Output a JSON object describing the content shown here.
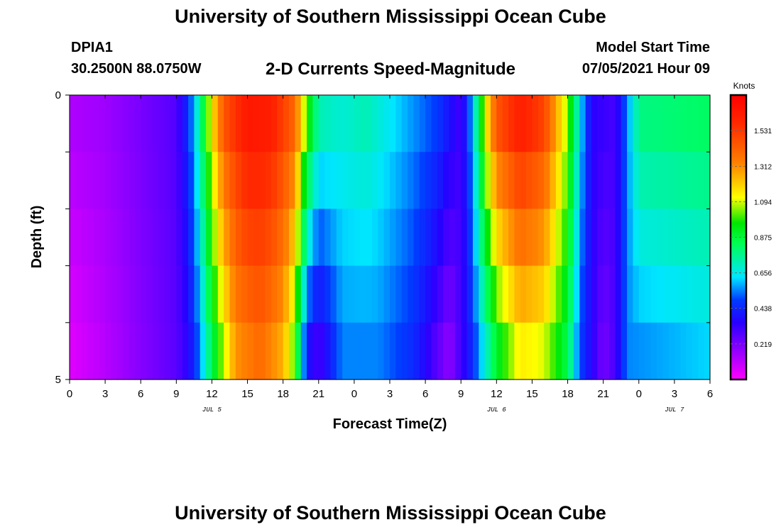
{
  "header": {
    "title": "University of Southern Mississippi Ocean Cube",
    "station": "DPIA1",
    "coordinates": "30.2500N  88.0750W",
    "subtitle": "2-D Currents Speed-Magnitude",
    "model_start_label": "Model Start Time",
    "model_start_value": "07/05/2021 Hour 09"
  },
  "footer": {
    "title": "University of Southern Mississippi Ocean Cube"
  },
  "chart_data": {
    "type": "heatmap",
    "title": "2-D Currents Speed-Magnitude",
    "xlabel": "Forecast Time(Z)",
    "ylabel": "Depth (ft)",
    "x_hours": [
      0,
      54
    ],
    "y_range": [
      0,
      5
    ],
    "x_tick_labels": [
      "0",
      "3",
      "6",
      "9",
      "12",
      "15",
      "18",
      "21",
      "0",
      "3",
      "6",
      "9",
      "12",
      "15",
      "18",
      "21",
      "0",
      "3",
      "6"
    ],
    "x_tick_hours": [
      0,
      3,
      6,
      9,
      12,
      15,
      18,
      21,
      24,
      27,
      30,
      33,
      36,
      39,
      42,
      45,
      48,
      51,
      54
    ],
    "date_labels": [
      {
        "label": "JUL 5",
        "hour": 12
      },
      {
        "label": "JUL 6",
        "hour": 36
      },
      {
        "label": "JUL 7",
        "hour": 51
      }
    ],
    "y_tick_labels": [
      "0",
      "5"
    ],
    "y_tick_values": [
      0,
      5
    ],
    "depth_rows": 5,
    "colorbar": {
      "unit": "Knots",
      "tick_labels": [
        "1.531",
        "1.312",
        "1.094",
        "0.875",
        "0.656",
        "0.438",
        "0.219"
      ],
      "tick_values": [
        1.531,
        1.312,
        1.094,
        0.875,
        0.656,
        0.438,
        0.219
      ],
      "range": [
        0.0,
        1.75
      ]
    },
    "speed_profile_surface": [
      {
        "hour": 0,
        "v": 0.13
      },
      {
        "hour": 3,
        "v": 0.16
      },
      {
        "hour": 6,
        "v": 0.22
      },
      {
        "hour": 9,
        "v": 0.28
      },
      {
        "hour": 10,
        "v": 0.45
      },
      {
        "hour": 11,
        "v": 0.75
      },
      {
        "hour": 12,
        "v": 1.15
      },
      {
        "hour": 13,
        "v": 1.45
      },
      {
        "hour": 15,
        "v": 1.65
      },
      {
        "hour": 17,
        "v": 1.62
      },
      {
        "hour": 19,
        "v": 1.4
      },
      {
        "hour": 20,
        "v": 1.0
      },
      {
        "hour": 21,
        "v": 0.72
      },
      {
        "hour": 23,
        "v": 0.68
      },
      {
        "hour": 25,
        "v": 0.72
      },
      {
        "hour": 28,
        "v": 0.6
      },
      {
        "hour": 31,
        "v": 0.48
      },
      {
        "hour": 33,
        "v": 0.3
      },
      {
        "hour": 34,
        "v": 0.6
      },
      {
        "hour": 35,
        "v": 1.1
      },
      {
        "hour": 36,
        "v": 1.45
      },
      {
        "hour": 38,
        "v": 1.62
      },
      {
        "hour": 40,
        "v": 1.5
      },
      {
        "hour": 42,
        "v": 1.05
      },
      {
        "hour": 43,
        "v": 0.65
      },
      {
        "hour": 44,
        "v": 0.35
      },
      {
        "hour": 46,
        "v": 0.3
      },
      {
        "hour": 47,
        "v": 0.55
      },
      {
        "hour": 48,
        "v": 0.78
      },
      {
        "hour": 54,
        "v": 0.82
      }
    ],
    "speed_profile_bottom": [
      {
        "hour": 0,
        "v": 0.05
      },
      {
        "hour": 3,
        "v": 0.12
      },
      {
        "hour": 6,
        "v": 0.2
      },
      {
        "hour": 9,
        "v": 0.27
      },
      {
        "hour": 10,
        "v": 0.35
      },
      {
        "hour": 11,
        "v": 0.55
      },
      {
        "hour": 12,
        "v": 0.85
      },
      {
        "hour": 14,
        "v": 1.3
      },
      {
        "hour": 16,
        "v": 1.4
      },
      {
        "hour": 18,
        "v": 1.25
      },
      {
        "hour": 19,
        "v": 1.0
      },
      {
        "hour": 20,
        "v": 0.4
      },
      {
        "hour": 21,
        "v": 0.3
      },
      {
        "hour": 23,
        "v": 0.55
      },
      {
        "hour": 26,
        "v": 0.55
      },
      {
        "hour": 29,
        "v": 0.45
      },
      {
        "hour": 32,
        "v": 0.18
      },
      {
        "hour": 34,
        "v": 0.45
      },
      {
        "hour": 36,
        "v": 0.9
      },
      {
        "hour": 38,
        "v": 1.15
      },
      {
        "hour": 40,
        "v": 1.1
      },
      {
        "hour": 42,
        "v": 0.85
      },
      {
        "hour": 43,
        "v": 0.5
      },
      {
        "hour": 45,
        "v": 0.22
      },
      {
        "hour": 46,
        "v": 0.3
      },
      {
        "hour": 47,
        "v": 0.55
      },
      {
        "hour": 54,
        "v": 0.62
      }
    ]
  }
}
